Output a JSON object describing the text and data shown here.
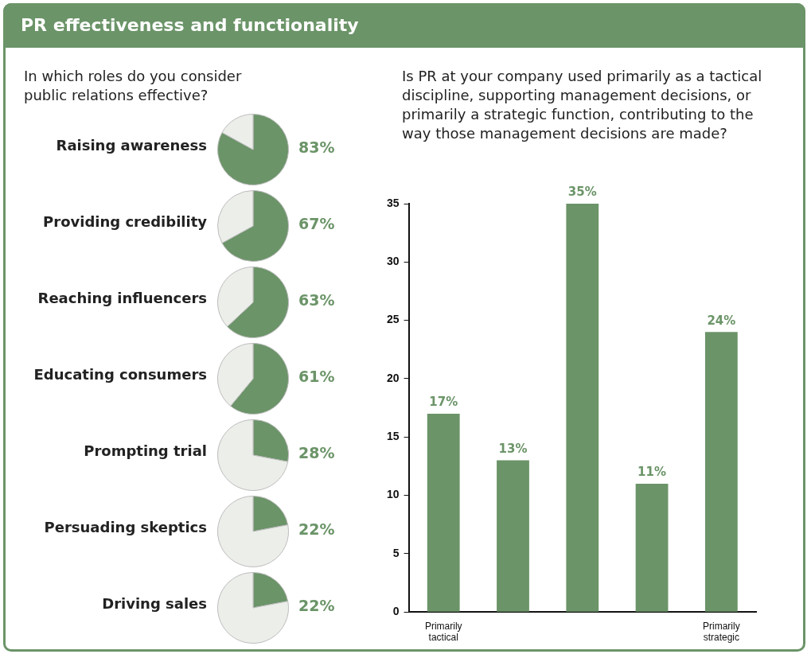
{
  "chart_data": [
    {
      "type": "other",
      "title": "PR effectiveness and functionality",
      "subtitle": "In which roles do you consider public relations effective?"
    },
    {
      "type": "pie",
      "title": "Raising awareness",
      "categories": [
        null,
        null
      ],
      "values": [
        83,
        17
      ],
      "colors": [
        "#6b9468",
        "#eceeea"
      ],
      "value_labels": [
        "83%",
        null
      ]
    },
    {
      "type": "pie",
      "title": "Providing credibility",
      "categories": [
        null,
        null
      ],
      "values": [
        67,
        33
      ],
      "colors": [
        "#6b9468",
        "#eceeea"
      ],
      "value_labels": [
        "67%",
        null
      ]
    },
    {
      "type": "pie",
      "title": "Reaching influencers",
      "categories": [
        null,
        null
      ],
      "values": [
        63,
        37
      ],
      "colors": [
        "#6b9468",
        "#eceeea"
      ],
      "value_labels": [
        "63%",
        null
      ]
    },
    {
      "type": "pie",
      "title": "Educating consumers",
      "categories": [
        null,
        null
      ],
      "values": [
        61,
        39
      ],
      "colors": [
        "#6b9468",
        "#eceeea"
      ],
      "value_labels": [
        "61%",
        null
      ]
    },
    {
      "type": "pie",
      "title": "Prompting trial",
      "categories": [
        null,
        null
      ],
      "values": [
        28,
        72
      ],
      "colors": [
        "#6b9468",
        "#eceeea"
      ],
      "value_labels": [
        "28%",
        null
      ]
    },
    {
      "type": "pie",
      "title": "Persuading skeptics",
      "categories": [
        null,
        null
      ],
      "values": [
        22,
        78
      ],
      "colors": [
        "#6b9468",
        "#eceeea"
      ],
      "value_labels": [
        "22%",
        null
      ]
    },
    {
      "type": "pie",
      "title": "Driving sales",
      "categories": [
        null,
        null
      ],
      "values": [
        22,
        78
      ],
      "colors": [
        "#6b9468",
        "#eceeea"
      ],
      "value_labels": [
        "22%",
        null
      ]
    },
    {
      "type": "bar",
      "title": "Is PR at your company used primarily as a tactical discipline, supporting management decisions, or primarily a strategic function, contributing to the way those management decisions are made?",
      "categories": [
        "Primarily tactical",
        null,
        null,
        null,
        "Primarily strategic"
      ],
      "values": [
        17,
        13,
        35,
        11,
        24
      ],
      "color": "#6b9468",
      "value_labels": [
        "17%",
        "13%",
        "35%",
        "11%",
        "24%"
      ],
      "ylim": [
        0,
        35
      ],
      "yticks": [
        0,
        5,
        10,
        15,
        20,
        25,
        30,
        35
      ]
    }
  ]
}
